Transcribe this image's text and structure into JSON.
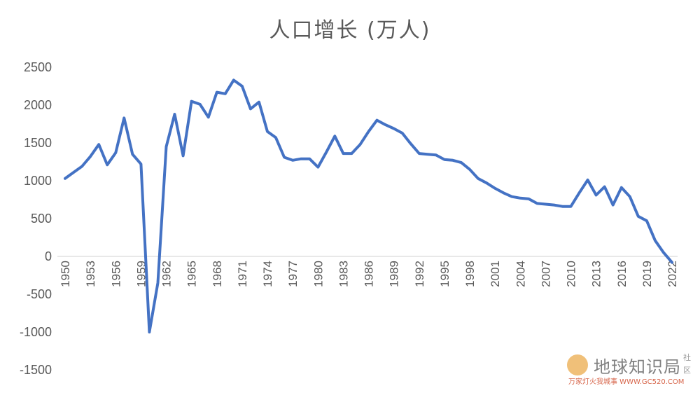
{
  "chart_data": {
    "type": "line",
    "title": "人口增长 (万人)",
    "xlabel": "",
    "ylabel": "",
    "ylim": [
      -1500,
      2500
    ],
    "yticks": [
      2500,
      2000,
      1500,
      1000,
      500,
      0,
      -500,
      -1000,
      -1500
    ],
    "grid": false,
    "legend": "none",
    "line_color": "#4472C4",
    "xtick_labels": [
      "1950",
      "1953",
      "1956",
      "1959",
      "1962",
      "1965",
      "1968",
      "1971",
      "1974",
      "1977",
      "1980",
      "1983",
      "1986",
      "1989",
      "1992",
      "1995",
      "1998",
      "2001",
      "2004",
      "2007",
      "2010",
      "2013",
      "2016",
      "2019",
      "2022"
    ],
    "x": [
      1950,
      1951,
      1952,
      1953,
      1954,
      1955,
      1956,
      1957,
      1958,
      1959,
      1960,
      1961,
      1962,
      1963,
      1964,
      1965,
      1966,
      1967,
      1968,
      1969,
      1970,
      1971,
      1972,
      1973,
      1974,
      1975,
      1976,
      1977,
      1978,
      1979,
      1980,
      1981,
      1982,
      1983,
      1984,
      1985,
      1986,
      1987,
      1988,
      1989,
      1990,
      1991,
      1992,
      1993,
      1994,
      1995,
      1996,
      1997,
      1998,
      1999,
      2000,
      2001,
      2002,
      2003,
      2004,
      2005,
      2006,
      2007,
      2008,
      2009,
      2010,
      2011,
      2012,
      2013,
      2014,
      2015,
      2016,
      2017,
      2018,
      2019,
      2020,
      2021,
      2022
    ],
    "series": [
      {
        "values": [
          1030,
          1110,
          1190,
          1320,
          1480,
          1210,
          1370,
          1830,
          1350,
          1220,
          -1000,
          -350,
          1450,
          1880,
          1330,
          2050,
          2010,
          1840,
          2170,
          2150,
          2330,
          2250,
          1950,
          2040,
          1650,
          1570,
          1310,
          1270,
          1290,
          1290,
          1180,
          1380,
          1590,
          1360,
          1360,
          1480,
          1650,
          1800,
          1740,
          1690,
          1630,
          1490,
          1360,
          1350,
          1340,
          1280,
          1270,
          1240,
          1150,
          1030,
          970,
          900,
          840,
          790,
          770,
          760,
          700,
          690,
          680,
          660,
          660,
          840,
          1010,
          810,
          920,
          680,
          910,
          790,
          530,
          470,
          210,
          50,
          -80
        ]
      }
    ]
  },
  "watermark": {
    "text": "地球知识局",
    "sub": "万家灯火我城事 WWW.GC520.COM",
    "side": "社区"
  }
}
